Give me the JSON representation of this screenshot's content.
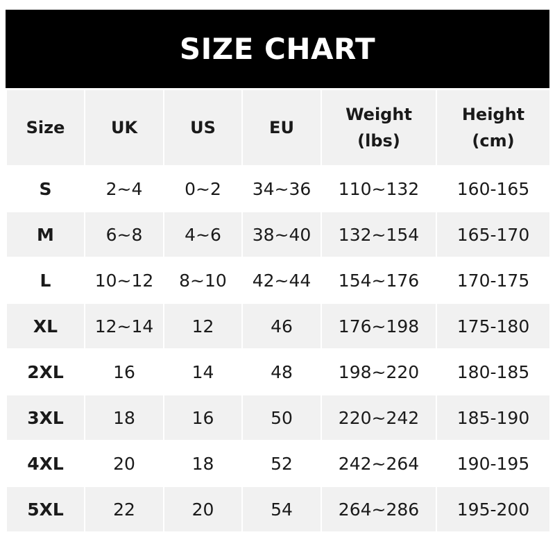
{
  "title": "SIZE CHART",
  "headers": [
    {
      "line1": "Size",
      "line2": ""
    },
    {
      "line1": "UK",
      "line2": ""
    },
    {
      "line1": "US",
      "line2": ""
    },
    {
      "line1": "EU",
      "line2": ""
    },
    {
      "line1": "Weight",
      "line2": "(lbs)"
    },
    {
      "line1": "Height",
      "line2": "(cm)"
    }
  ],
  "rows": [
    [
      "S",
      "2~4",
      "0~2",
      "34~36",
      "110~132",
      "160-165"
    ],
    [
      "M",
      "6~8",
      "4~6",
      "38~40",
      "132~154",
      "165-170"
    ],
    [
      "L",
      "10~12",
      "8~10",
      "42~44",
      "154~176",
      "170-175"
    ],
    [
      "XL",
      "12~14",
      "12",
      "46",
      "176~198",
      "175-180"
    ],
    [
      "2XL",
      "16",
      "14",
      "48",
      "198~220",
      "180-185"
    ],
    [
      "3XL",
      "18",
      "16",
      "50",
      "220~242",
      "185-190"
    ],
    [
      "4XL",
      "20",
      "18",
      "52",
      "242~264",
      "190-195"
    ],
    [
      "5XL",
      "22",
      "20",
      "54",
      "264~286",
      "195-200"
    ]
  ],
  "colors": {
    "title_bg": "#000000",
    "title_text": "#ffffff",
    "alt_row": "#f1f1f1"
  }
}
